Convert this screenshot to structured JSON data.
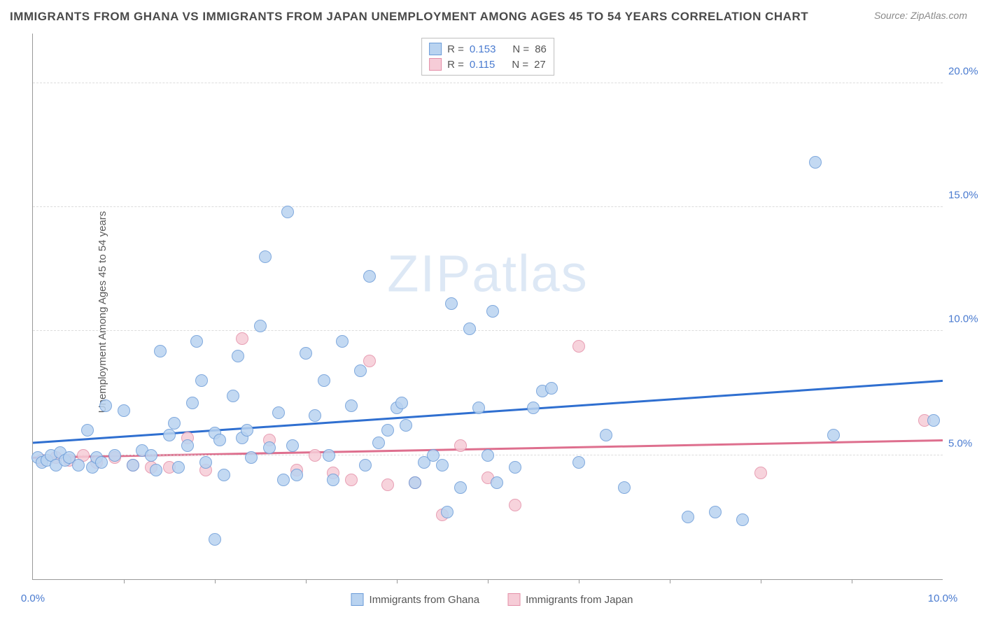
{
  "title": "IMMIGRANTS FROM GHANA VS IMMIGRANTS FROM JAPAN UNEMPLOYMENT AMONG AGES 45 TO 54 YEARS CORRELATION CHART",
  "source": "Source: ZipAtlas.com",
  "ylabel": "Unemployment Among Ages 45 to 54 years",
  "watermark_a": "ZIP",
  "watermark_b": "atlas",
  "chart": {
    "type": "scatter",
    "background_color": "#ffffff",
    "grid_color": "#dcdcdc",
    "axis_color": "#999999",
    "xlim": [
      0,
      10
    ],
    "ylim": [
      0,
      22
    ],
    "yticks": [
      5,
      10,
      15,
      20
    ],
    "ytick_labels": [
      "5.0%",
      "10.0%",
      "15.0%",
      "20.0%"
    ],
    "xticks_minor": [
      1,
      2,
      3,
      4,
      5,
      6,
      7,
      8,
      9
    ],
    "xtick_labels": [
      {
        "x": 0,
        "label": "0.0%"
      },
      {
        "x": 10,
        "label": "10.0%"
      }
    ],
    "series": [
      {
        "name": "Immigrants from Ghana",
        "key": "ghana",
        "fill": "#b9d3f0",
        "stroke": "#6a9bd8",
        "line_color": "#2f6fd0",
        "r_value": "0.153",
        "n_value": "86",
        "marker_radius": 9,
        "regression": {
          "x1": 0,
          "y1": 5.5,
          "x2": 10,
          "y2": 8.0
        },
        "points": [
          [
            0.05,
            4.9
          ],
          [
            0.1,
            4.7
          ],
          [
            0.15,
            4.8
          ],
          [
            0.2,
            5.0
          ],
          [
            0.25,
            4.6
          ],
          [
            0.3,
            5.1
          ],
          [
            0.35,
            4.8
          ],
          [
            0.4,
            4.9
          ],
          [
            0.5,
            4.6
          ],
          [
            0.6,
            6.0
          ],
          [
            0.65,
            4.5
          ],
          [
            0.7,
            4.9
          ],
          [
            0.75,
            4.7
          ],
          [
            0.8,
            7.0
          ],
          [
            0.9,
            5.0
          ],
          [
            1.0,
            6.8
          ],
          [
            1.1,
            4.6
          ],
          [
            1.2,
            5.2
          ],
          [
            1.3,
            5.0
          ],
          [
            1.35,
            4.4
          ],
          [
            1.4,
            9.2
          ],
          [
            1.5,
            5.8
          ],
          [
            1.55,
            6.3
          ],
          [
            1.6,
            4.5
          ],
          [
            1.7,
            5.4
          ],
          [
            1.75,
            7.1
          ],
          [
            1.8,
            9.6
          ],
          [
            1.85,
            8.0
          ],
          [
            1.9,
            4.7
          ],
          [
            2.0,
            1.6
          ],
          [
            2.0,
            5.9
          ],
          [
            2.05,
            5.6
          ],
          [
            2.1,
            4.2
          ],
          [
            2.2,
            7.4
          ],
          [
            2.25,
            9.0
          ],
          [
            2.3,
            5.7
          ],
          [
            2.35,
            6.0
          ],
          [
            2.4,
            4.9
          ],
          [
            2.5,
            10.2
          ],
          [
            2.55,
            13.0
          ],
          [
            2.6,
            5.3
          ],
          [
            2.7,
            6.7
          ],
          [
            2.75,
            4.0
          ],
          [
            2.8,
            14.8
          ],
          [
            2.85,
            5.4
          ],
          [
            2.9,
            4.2
          ],
          [
            3.0,
            9.1
          ],
          [
            3.1,
            6.6
          ],
          [
            3.2,
            8.0
          ],
          [
            3.25,
            5.0
          ],
          [
            3.3,
            4.0
          ],
          [
            3.4,
            9.6
          ],
          [
            3.5,
            7.0
          ],
          [
            3.6,
            8.4
          ],
          [
            3.65,
            4.6
          ],
          [
            3.7,
            12.2
          ],
          [
            3.8,
            5.5
          ],
          [
            3.9,
            6.0
          ],
          [
            4.0,
            6.9
          ],
          [
            4.05,
            7.1
          ],
          [
            4.1,
            6.2
          ],
          [
            4.2,
            3.9
          ],
          [
            4.3,
            4.7
          ],
          [
            4.4,
            5.0
          ],
          [
            4.5,
            4.6
          ],
          [
            4.55,
            2.7
          ],
          [
            4.6,
            11.1
          ],
          [
            4.7,
            3.7
          ],
          [
            4.8,
            10.1
          ],
          [
            4.9,
            6.9
          ],
          [
            5.0,
            5.0
          ],
          [
            5.05,
            10.8
          ],
          [
            5.1,
            3.9
          ],
          [
            5.3,
            4.5
          ],
          [
            5.5,
            6.9
          ],
          [
            5.6,
            7.6
          ],
          [
            5.7,
            7.7
          ],
          [
            6.0,
            4.7
          ],
          [
            6.3,
            5.8
          ],
          [
            6.5,
            3.7
          ],
          [
            7.2,
            2.5
          ],
          [
            7.5,
            2.7
          ],
          [
            7.8,
            2.4
          ],
          [
            8.6,
            16.8
          ],
          [
            8.8,
            5.8
          ],
          [
            9.9,
            6.4
          ]
        ]
      },
      {
        "name": "Immigrants from Japan",
        "key": "japan",
        "fill": "#f6ccd7",
        "stroke": "#e48fa8",
        "line_color": "#de6f8e",
        "r_value": "0.115",
        "n_value": "27",
        "marker_radius": 9,
        "regression": {
          "x1": 0,
          "y1": 4.9,
          "x2": 10,
          "y2": 5.6
        },
        "points": [
          [
            0.1,
            4.8
          ],
          [
            0.25,
            4.9
          ],
          [
            0.4,
            4.8
          ],
          [
            0.55,
            5.0
          ],
          [
            0.7,
            4.7
          ],
          [
            0.9,
            4.9
          ],
          [
            1.1,
            4.6
          ],
          [
            1.3,
            4.5
          ],
          [
            1.5,
            4.5
          ],
          [
            1.7,
            5.7
          ],
          [
            1.9,
            4.4
          ],
          [
            2.3,
            9.7
          ],
          [
            2.6,
            5.6
          ],
          [
            2.9,
            4.4
          ],
          [
            3.1,
            5.0
          ],
          [
            3.3,
            4.3
          ],
          [
            3.5,
            4.0
          ],
          [
            3.7,
            8.8
          ],
          [
            3.9,
            3.8
          ],
          [
            4.2,
            3.9
          ],
          [
            4.5,
            2.6
          ],
          [
            4.7,
            5.4
          ],
          [
            5.0,
            4.1
          ],
          [
            5.3,
            3.0
          ],
          [
            6.0,
            9.4
          ],
          [
            8.0,
            4.3
          ],
          [
            9.8,
            6.4
          ]
        ]
      }
    ]
  },
  "legend_top": {
    "r_label": "R =",
    "n_label": "N ="
  },
  "legend_bottom_labels": {
    "ghana": "Immigrants from Ghana",
    "japan": "Immigrants from Japan"
  }
}
